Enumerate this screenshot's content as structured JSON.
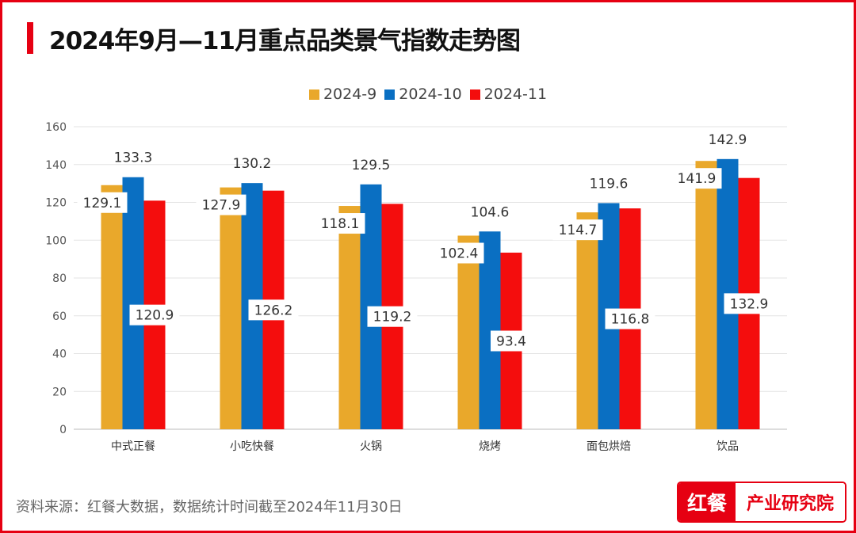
{
  "title": "2024年9月—11月重点品类景气指数走势图",
  "source": "资料来源：红餐大数据，数据统计时间截至2024年11月30日",
  "logo": {
    "left": "红餐",
    "right": "产业研究院"
  },
  "chart_data": {
    "type": "bar",
    "title": "2024年9月—11月重点品类景气指数走势图",
    "categories": [
      "中式正餐",
      "小吃快餐",
      "火锅",
      "烧烤",
      "面包烘焙",
      "饮品"
    ],
    "series": [
      {
        "name": "2024-9",
        "color": "#e9a82b",
        "values": [
          129.1,
          127.9,
          118.1,
          102.4,
          114.7,
          141.9
        ]
      },
      {
        "name": "2024-10",
        "color": "#0a6fc2",
        "values": [
          133.3,
          130.2,
          129.5,
          104.6,
          119.6,
          142.9
        ]
      },
      {
        "name": "2024-11",
        "color": "#f40d0d",
        "values": [
          120.9,
          126.2,
          119.2,
          93.4,
          116.8,
          132.9
        ]
      }
    ],
    "ylim": [
      0,
      160
    ],
    "yticks": [
      0,
      20,
      40,
      60,
      80,
      100,
      120,
      140,
      160
    ],
    "grid": true,
    "legend": "top-center",
    "xlabel": "",
    "ylabel": ""
  }
}
